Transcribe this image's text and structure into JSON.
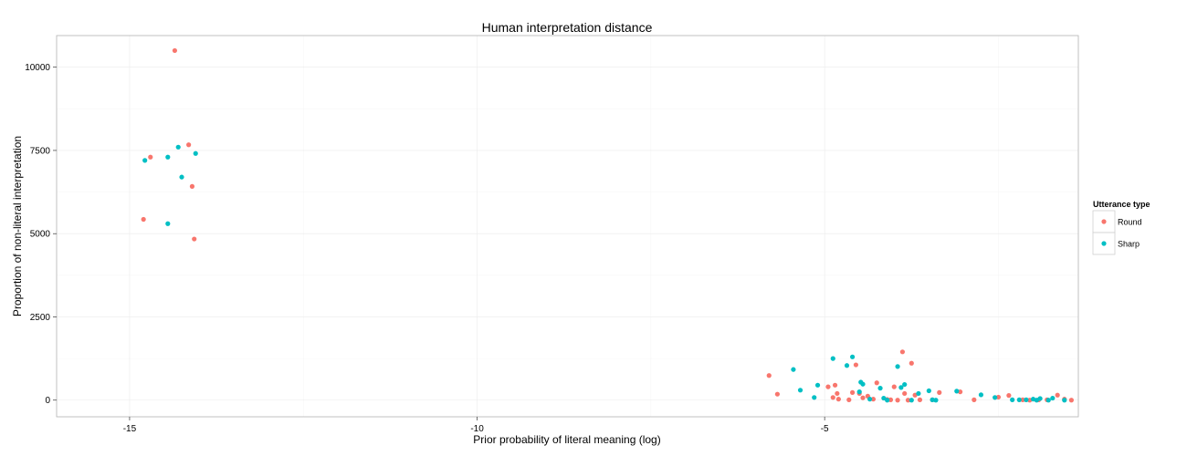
{
  "chart_data": {
    "type": "scatter",
    "title": "Human interpretation distance",
    "xlabel": "Prior probability of literal meaning (log)",
    "ylabel": "Proportion of non-literal interpretation",
    "xlim": [
      -16.05,
      -1.35
    ],
    "ylim": [
      -500,
      10950
    ],
    "x_ticks": [
      -15,
      -10,
      -5
    ],
    "x_tick_labels": [
      "-15",
      "-10",
      "-5"
    ],
    "y_ticks": [
      0,
      2500,
      5000,
      7500,
      10000
    ],
    "y_tick_labels": [
      "0",
      "2500",
      "5000",
      "7500",
      "10000"
    ],
    "grid": true,
    "legend": {
      "title": "Utterance type",
      "position": "right"
    },
    "series": [
      {
        "name": "Round",
        "color": "#F8766D",
        "points": [
          [
            -14.35,
            10500
          ],
          [
            -14.7,
            7300
          ],
          [
            -14.15,
            7670
          ],
          [
            -14.1,
            6420
          ],
          [
            -14.8,
            5430
          ],
          [
            -14.07,
            4840
          ],
          [
            -5.8,
            740
          ],
          [
            -5.68,
            180
          ],
          [
            -4.95,
            400
          ],
          [
            -4.88,
            80
          ],
          [
            -4.85,
            450
          ],
          [
            -4.82,
            200
          ],
          [
            -4.8,
            30
          ],
          [
            -4.65,
            10
          ],
          [
            -4.6,
            230
          ],
          [
            -4.55,
            1060
          ],
          [
            -4.5,
            200
          ],
          [
            -4.45,
            70
          ],
          [
            -4.38,
            120
          ],
          [
            -4.3,
            30
          ],
          [
            -4.25,
            520
          ],
          [
            -4.1,
            20
          ],
          [
            -4.05,
            10
          ],
          [
            -4.0,
            400
          ],
          [
            -3.95,
            0
          ],
          [
            -3.88,
            1450
          ],
          [
            -3.85,
            200
          ],
          [
            -3.8,
            0
          ],
          [
            -3.75,
            1110
          ],
          [
            -3.7,
            150
          ],
          [
            -3.63,
            10
          ],
          [
            -3.45,
            10
          ],
          [
            -3.35,
            230
          ],
          [
            -3.05,
            250
          ],
          [
            -2.85,
            10
          ],
          [
            -2.5,
            90
          ],
          [
            -2.35,
            140
          ],
          [
            -2.15,
            10
          ],
          [
            -2.05,
            0
          ],
          [
            -1.92,
            10
          ],
          [
            -1.8,
            10
          ],
          [
            -1.65,
            150
          ],
          [
            -1.55,
            30
          ],
          [
            -1.45,
            0
          ],
          [
            -1.3,
            10
          ],
          [
            -1.25,
            0
          ],
          [
            -1.15,
            0
          ],
          [
            -1.0,
            0
          ],
          [
            -0.95,
            10
          ],
          [
            -0.9,
            0
          ]
        ]
      },
      {
        "name": "Sharp",
        "color": "#00BFC4",
        "points": [
          [
            -14.78,
            7200
          ],
          [
            -14.45,
            7300
          ],
          [
            -14.3,
            7600
          ],
          [
            -14.05,
            7410
          ],
          [
            -14.25,
            6700
          ],
          [
            -14.45,
            5300
          ],
          [
            -5.45,
            920
          ],
          [
            -5.35,
            300
          ],
          [
            -5.15,
            80
          ],
          [
            -5.1,
            450
          ],
          [
            -4.88,
            1250
          ],
          [
            -4.68,
            1040
          ],
          [
            -4.6,
            1300
          ],
          [
            -4.5,
            250
          ],
          [
            -4.48,
            540
          ],
          [
            -4.45,
            480
          ],
          [
            -4.35,
            30
          ],
          [
            -4.2,
            360
          ],
          [
            -4.15,
            60
          ],
          [
            -4.1,
            0
          ],
          [
            -3.95,
            1010
          ],
          [
            -3.9,
            380
          ],
          [
            -3.85,
            470
          ],
          [
            -3.75,
            0
          ],
          [
            -3.65,
            200
          ],
          [
            -3.5,
            280
          ],
          [
            -3.45,
            10
          ],
          [
            -3.4,
            0
          ],
          [
            -3.1,
            270
          ],
          [
            -2.75,
            160
          ],
          [
            -2.55,
            80
          ],
          [
            -2.3,
            10
          ],
          [
            -2.2,
            10
          ],
          [
            -2.1,
            10
          ],
          [
            -2.0,
            30
          ],
          [
            -1.95,
            0
          ],
          [
            -1.9,
            50
          ],
          [
            -1.78,
            0
          ],
          [
            -1.72,
            60
          ],
          [
            -1.55,
            0
          ],
          [
            -1.28,
            0
          ],
          [
            -1.2,
            10
          ],
          [
            -1.05,
            0
          ]
        ]
      }
    ]
  }
}
